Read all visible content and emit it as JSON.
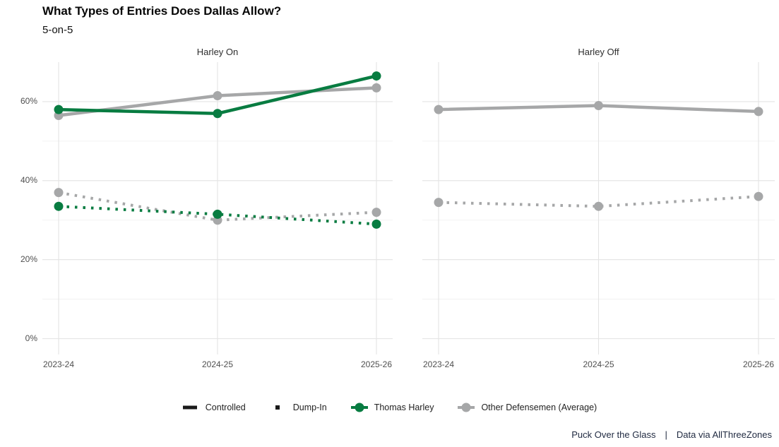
{
  "header": {
    "title": "What Types of Entries Does Dallas Allow?",
    "subtitle": "5-on-5"
  },
  "legend": {
    "items": [
      {
        "label": "Controlled",
        "swatch": "solid-line",
        "color": "#1a1a1a"
      },
      {
        "label": "Dump-In",
        "swatch": "dash-square",
        "color": "#1a1a1a"
      },
      {
        "label": "Thomas Harley",
        "swatch": "line-point",
        "color": "#087c41"
      },
      {
        "label": "Other Defensemen (Average)",
        "swatch": "line-point",
        "color": "#a6a7a8"
      }
    ]
  },
  "caption": {
    "left": "Puck Over the Glass",
    "separator": "|",
    "right": "Data via AllThreeZones"
  },
  "colors": {
    "green": "#087c41",
    "gray": "#a6a7a8",
    "black": "#1a1a1a",
    "grid_major": "#e3e3e3",
    "grid_minor": "#efefef",
    "axis_text": "#4f4f4f",
    "strip_text": "#2e2e2e",
    "caption_text": "#1f2940"
  },
  "chart_data": [
    {
      "type": "line",
      "title": "Harley On",
      "categories": [
        "2023-24",
        "2024-25",
        "2025-26"
      ],
      "ylim": [
        -4,
        70
      ],
      "grid": true,
      "legend_position": "bottom",
      "yticks": [
        {
          "value": 0,
          "label": "0%"
        },
        {
          "value": 20,
          "label": "20%"
        },
        {
          "value": 40,
          "label": "40%"
        },
        {
          "value": 60,
          "label": "60%"
        }
      ],
      "yminor": [
        10,
        30,
        50
      ],
      "series": [
        {
          "name": "Other Defensemen (Average) — Dump-In",
          "group": "Other Defensemen (Average)",
          "entry_type": "Dump-In",
          "color": "#a6a7a8",
          "style": "dashed",
          "values": [
            37,
            30,
            32
          ]
        },
        {
          "name": "Thomas Harley — Dump-In",
          "group": "Thomas Harley",
          "entry_type": "Dump-In",
          "color": "#087c41",
          "style": "dashed",
          "values": [
            33.5,
            31.5,
            29
          ]
        },
        {
          "name": "Other Defensemen (Average) — Controlled",
          "group": "Other Defensemen (Average)",
          "entry_type": "Controlled",
          "color": "#a6a7a8",
          "style": "solid",
          "values": [
            56.5,
            61.5,
            63.5
          ]
        },
        {
          "name": "Thomas Harley — Controlled",
          "group": "Thomas Harley",
          "entry_type": "Controlled",
          "color": "#087c41",
          "style": "solid",
          "values": [
            58,
            57,
            66.5
          ]
        }
      ]
    },
    {
      "type": "line",
      "title": "Harley Off",
      "categories": [
        "2023-24",
        "2024-25",
        "2025-26"
      ],
      "ylim": [
        -4,
        70
      ],
      "grid": true,
      "legend_position": "bottom",
      "yticks": [
        {
          "value": 0,
          "label": "0%"
        },
        {
          "value": 20,
          "label": "20%"
        },
        {
          "value": 40,
          "label": "40%"
        },
        {
          "value": 60,
          "label": "60%"
        }
      ],
      "yminor": [
        10,
        30,
        50
      ],
      "series": [
        {
          "name": "Other Defensemen (Average) — Dump-In",
          "group": "Other Defensemen (Average)",
          "entry_type": "Dump-In",
          "color": "#a6a7a8",
          "style": "dashed",
          "values": [
            34.5,
            33.5,
            36
          ]
        },
        {
          "name": "Other Defensemen (Average) — Controlled",
          "group": "Other Defensemen (Average)",
          "entry_type": "Controlled",
          "color": "#a6a7a8",
          "style": "solid",
          "values": [
            58,
            59,
            57.5
          ]
        }
      ]
    }
  ]
}
